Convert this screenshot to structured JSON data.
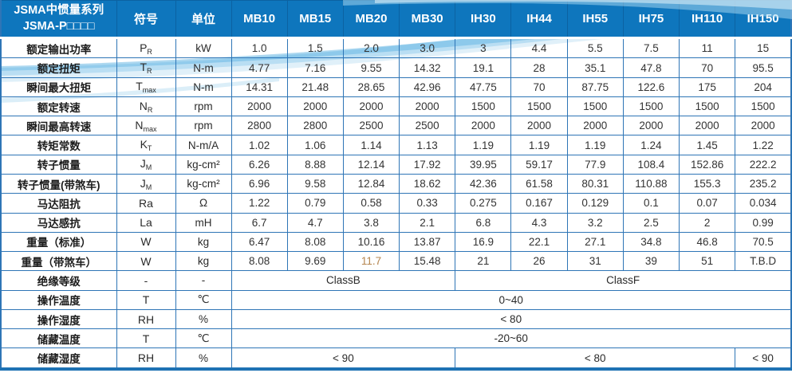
{
  "title": {
    "line1": "JSMA中惯量系列",
    "line2": "JSMA-P□□□□"
  },
  "columns": {
    "symbol_header": "符号",
    "unit_header": "单位",
    "models": [
      "MB10",
      "MB15",
      "MB20",
      "MB30",
      "IH30",
      "IH44",
      "IH55",
      "IH75",
      "IH110",
      "IH150"
    ]
  },
  "colors": {
    "header_bg": "#0e76bd",
    "grid_line": "#2e75b6",
    "wave_blue": "#69b8e4",
    "highlight_text": "#b5854f"
  },
  "rows": [
    {
      "label": "额定输出功率",
      "symbol": "P",
      "sub": "R",
      "unit": "kW",
      "values": [
        "1.0",
        "1.5",
        "2.0",
        "3.0",
        "3",
        "4.4",
        "5.5",
        "7.5",
        "11",
        "15"
      ]
    },
    {
      "label": "额定扭矩",
      "symbol": "T",
      "sub": "R",
      "unit": "N-m",
      "values": [
        "4.77",
        "7.16",
        "9.55",
        "14.32",
        "19.1",
        "28",
        "35.1",
        "47.8",
        "70",
        "95.5"
      ]
    },
    {
      "label": "瞬间最大扭矩",
      "symbol": "T",
      "sub": "max",
      "unit": "N-m",
      "values": [
        "14.31",
        "21.48",
        "28.65",
        "42.96",
        "47.75",
        "70",
        "87.75",
        "122.6",
        "175",
        "204"
      ]
    },
    {
      "label": "额定转速",
      "symbol": "N",
      "sub": "R",
      "unit": "rpm",
      "values": [
        "2000",
        "2000",
        "2000",
        "2000",
        "1500",
        "1500",
        "1500",
        "1500",
        "1500",
        "1500"
      ]
    },
    {
      "label": "瞬间最高转速",
      "symbol": "N",
      "sub": "max",
      "unit": "rpm",
      "values": [
        "2800",
        "2800",
        "2500",
        "2500",
        "2000",
        "2000",
        "2000",
        "2000",
        "2000",
        "2000"
      ]
    },
    {
      "label": "转矩常数",
      "symbol": "K",
      "sub": "T",
      "unit": "N-m/A",
      "values": [
        "1.02",
        "1.06",
        "1.14",
        "1.13",
        "1.19",
        "1.19",
        "1.19",
        "1.24",
        "1.45",
        "1.22"
      ]
    },
    {
      "label": "转子惯量",
      "symbol": "J",
      "sub": "M",
      "unit": "kg-cm²",
      "values": [
        "6.26",
        "8.88",
        "12.14",
        "17.92",
        "39.95",
        "59.17",
        "77.9",
        "108.4",
        "152.86",
        "222.2"
      ]
    },
    {
      "label": "转子惯量(带煞车)",
      "symbol": "J",
      "sub": "M",
      "unit": "kg-cm²",
      "values": [
        "6.96",
        "9.58",
        "12.84",
        "18.62",
        "42.36",
        "61.58",
        "80.31",
        "110.88",
        "155.3",
        "235.2"
      ]
    },
    {
      "label": "马达阻抗",
      "symbol": "Ra",
      "unit": "Ω",
      "values": [
        "1.22",
        "0.79",
        "0.58",
        "0.33",
        "0.275",
        "0.167",
        "0.129",
        "0.1",
        "0.07",
        "0.034"
      ]
    },
    {
      "label": "马达感抗",
      "symbol": "La",
      "unit": "mH",
      "values": [
        "6.7",
        "4.7",
        "3.8",
        "2.1",
        "6.8",
        "4.3",
        "3.2",
        "2.5",
        "2",
        "0.99"
      ]
    },
    {
      "label": "重量（标准）",
      "symbol": "W",
      "unit": "kg",
      "values": [
        "6.47",
        "8.08",
        "10.16",
        "13.87",
        "16.9",
        "22.1",
        "27.1",
        "34.8",
        "46.8",
        "70.5"
      ]
    },
    {
      "label": "重量（带煞车）",
      "symbol": "W",
      "unit": "kg",
      "values": [
        "8.08",
        "9.69",
        "11.7",
        "15.48",
        "21",
        "26",
        "31",
        "39",
        "51",
        "T.B.D"
      ],
      "highlight": [
        2
      ]
    },
    {
      "label": "绝缘等级",
      "symbol": "-",
      "unit": "-",
      "spans": [
        {
          "text": "ClassB",
          "cols": 4
        },
        {
          "text": "ClassF",
          "cols": 6
        }
      ]
    },
    {
      "label": "操作温度",
      "symbol": "T",
      "unit": "℃",
      "spans": [
        {
          "text": "0~40",
          "cols": 10
        }
      ]
    },
    {
      "label": "操作湿度",
      "symbol": "RH",
      "unit": "%",
      "spans": [
        {
          "text": "< 80",
          "cols": 10
        }
      ]
    },
    {
      "label": "储藏温度",
      "symbol": "T",
      "unit": "℃",
      "spans": [
        {
          "text": "-20~60",
          "cols": 10
        }
      ]
    },
    {
      "label": "储藏湿度",
      "symbol": "RH",
      "unit": "%",
      "spans": [
        {
          "text": "< 90",
          "cols": 4
        },
        {
          "text": "< 80",
          "cols": 5
        },
        {
          "text": "< 90",
          "cols": 1
        }
      ]
    }
  ]
}
